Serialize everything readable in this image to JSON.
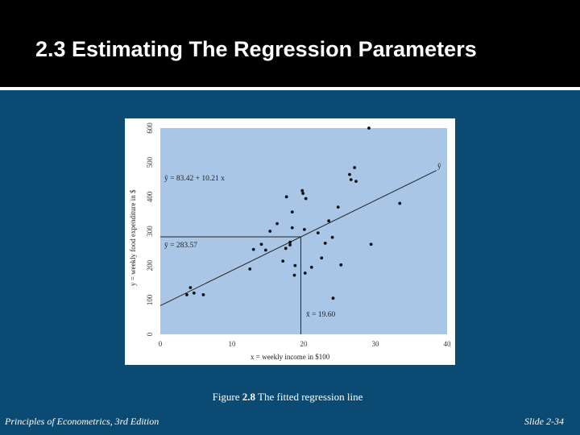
{
  "slide": {
    "title": "2.3 Estimating The Regression Parameters",
    "caption_prefix": "Figure ",
    "caption_number": "2.8",
    "caption_text": " The fitted regression line",
    "footer_left": "Principles of Econometrics, 3rd Edition",
    "footer_right": "Slide 2-34"
  },
  "colors": {
    "slide_background": "#0b4a72",
    "title_bar": "#000000",
    "plot_background": "#a9c6e6",
    "points": "#111111"
  },
  "chart_data": {
    "type": "scatter",
    "xlabel": "x = weekly income in $100",
    "ylabel": "y = weekly food expenditure in $",
    "xlim": [
      0,
      40
    ],
    "ylim": [
      0,
      600
    ],
    "xticks": [
      "0",
      "10",
      "20",
      "30",
      "40"
    ],
    "yticks": [
      "0",
      "100",
      "200",
      "300",
      "400",
      "500",
      "600"
    ],
    "regression_line": {
      "intercept": 83.42,
      "slope": 10.21,
      "label": "ŷ"
    },
    "equation_label": "ŷ = 83.42 + 10.21 x",
    "mean_y_label": "ȳ = 283.57",
    "mean_x_label": "x̄ = 19.60",
    "mean_x": 19.6,
    "mean_y": 283.57,
    "points": [
      [
        3.7,
        115
      ],
      [
        4.2,
        136
      ],
      [
        4.7,
        120
      ],
      [
        6.0,
        115
      ],
      [
        12.5,
        190
      ],
      [
        13.0,
        247
      ],
      [
        14.1,
        262
      ],
      [
        14.7,
        245
      ],
      [
        15.3,
        300
      ],
      [
        16.3,
        322
      ],
      [
        17.1,
        213
      ],
      [
        17.5,
        250
      ],
      [
        17.6,
        400
      ],
      [
        18.1,
        268
      ],
      [
        18.1,
        260
      ],
      [
        18.4,
        356
      ],
      [
        18.4,
        310
      ],
      [
        18.7,
        172
      ],
      [
        18.8,
        200
      ],
      [
        19.8,
        418
      ],
      [
        19.9,
        410
      ],
      [
        20.1,
        305
      ],
      [
        20.2,
        178
      ],
      [
        20.3,
        395
      ],
      [
        21.1,
        195
      ],
      [
        22.0,
        295
      ],
      [
        22.5,
        222
      ],
      [
        23.0,
        265
      ],
      [
        23.5,
        330
      ],
      [
        24.0,
        282
      ],
      [
        24.1,
        105
      ],
      [
        24.8,
        370
      ],
      [
        25.2,
        202
      ],
      [
        26.4,
        465
      ],
      [
        26.6,
        450
      ],
      [
        27.1,
        485
      ],
      [
        27.3,
        445
      ],
      [
        29.1,
        600
      ],
      [
        29.4,
        262
      ],
      [
        33.4,
        381
      ]
    ]
  }
}
